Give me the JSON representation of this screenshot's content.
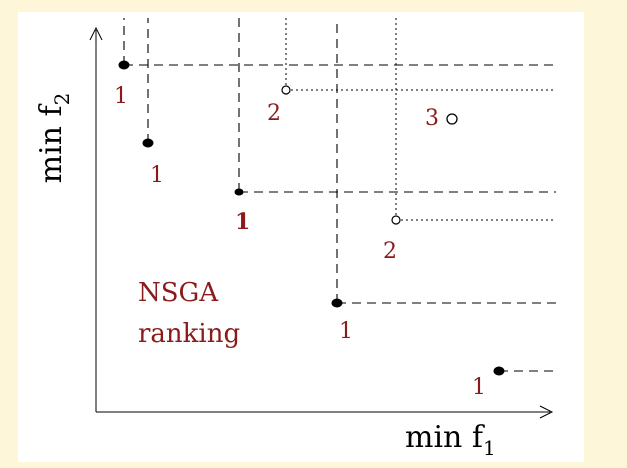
{
  "diagram": {
    "axes": {
      "x_label_text": "min f",
      "x_label_sub": "1",
      "y_label_text": "min f",
      "y_label_sub": "2"
    },
    "caption": {
      "line1": "NSGA",
      "line2": "ranking"
    },
    "points": [
      {
        "id": "p1",
        "rank": "1",
        "filled": true
      },
      {
        "id": "p2",
        "rank": "1",
        "filled": true
      },
      {
        "id": "p3",
        "rank": "1",
        "filled": true
      },
      {
        "id": "p4",
        "rank": "1",
        "filled": true
      },
      {
        "id": "p5",
        "rank": "1",
        "filled": true
      },
      {
        "id": "p6",
        "rank": "2",
        "filled": false
      },
      {
        "id": "p7",
        "rank": "2",
        "filled": false
      },
      {
        "id": "p8",
        "rank": "3",
        "filled": false
      }
    ],
    "colors": {
      "rank_label": "#8b1a1a",
      "page_background": "#fdf6d8",
      "panel_background": "#ffffff",
      "lines": "#000000"
    }
  }
}
